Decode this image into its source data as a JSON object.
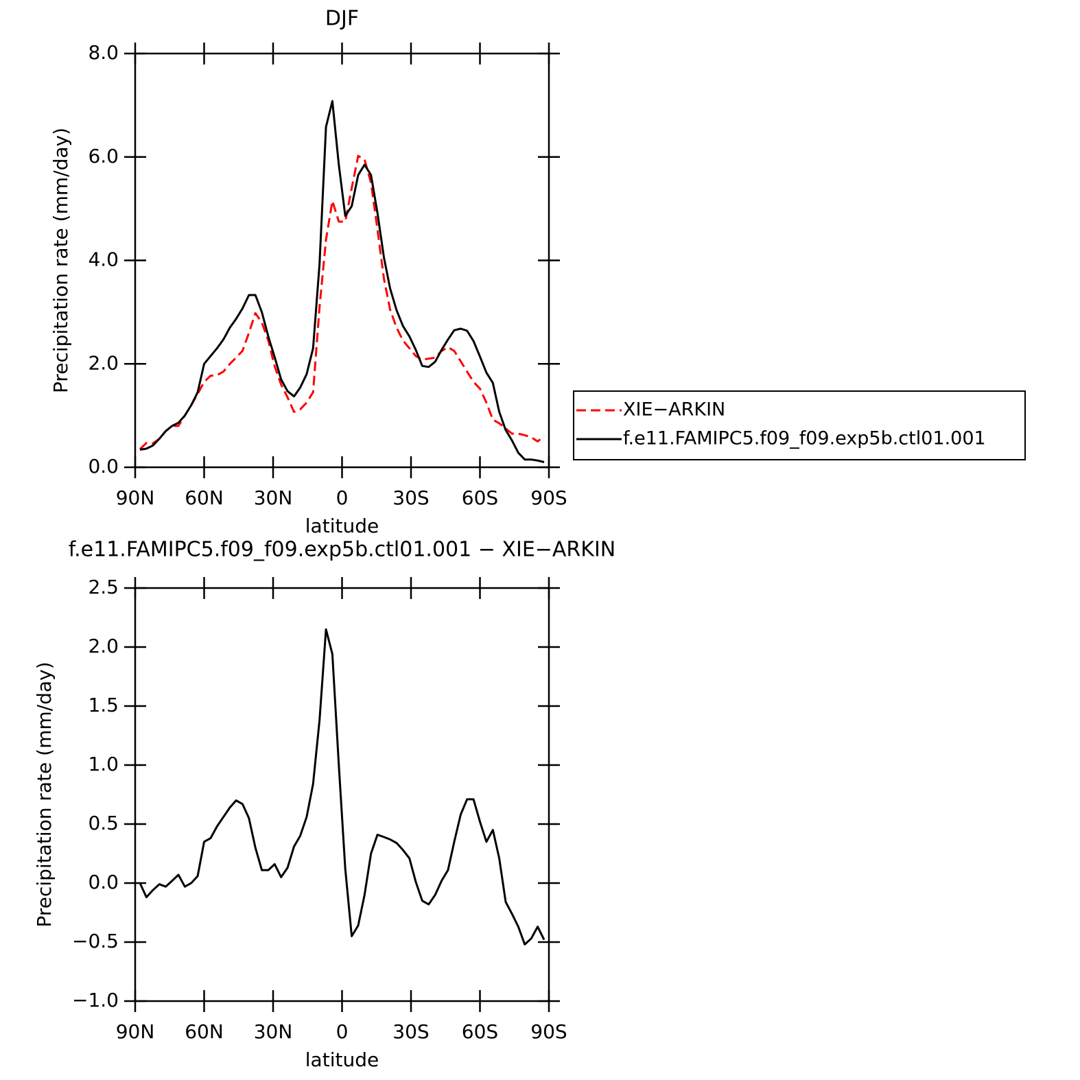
{
  "chart_data": [
    {
      "type": "line",
      "title": "DJF",
      "xlabel": "latitude",
      "ylabel": "Precipitation rate (mm/day)",
      "x": [
        87.9,
        85.1,
        82.3,
        79.5,
        76.7,
        73.9,
        71.2,
        68.4,
        65.6,
        62.8,
        60.0,
        57.2,
        54.4,
        51.6,
        48.8,
        46.1,
        43.3,
        40.5,
        37.7,
        34.9,
        32.1,
        29.3,
        26.5,
        23.7,
        20.9,
        18.2,
        15.4,
        12.6,
        9.8,
        7.0,
        4.2,
        1.4,
        -1.4,
        -4.2,
        -7.0,
        -9.8,
        -12.6,
        -15.4,
        -18.2,
        -20.9,
        -23.7,
        -26.5,
        -29.3,
        -32.1,
        -34.9,
        -37.7,
        -40.5,
        -43.3,
        -46.1,
        -48.8,
        -51.6,
        -54.4,
        -57.2,
        -60.0,
        -62.8,
        -65.6,
        -68.4,
        -71.2,
        -73.9,
        -76.7,
        -79.5,
        -82.3,
        -85.1,
        -87.9
      ],
      "series": [
        {
          "name": "XIE−ARKIN",
          "color": "#ff0000",
          "line_style": "dashed",
          "values": [
            0.35,
            0.47,
            0.46,
            0.55,
            0.7,
            0.8,
            0.8,
            1.0,
            1.2,
            1.42,
            1.65,
            1.77,
            1.78,
            1.85,
            2.0,
            2.12,
            2.25,
            2.6,
            2.98,
            2.8,
            2.45,
            1.95,
            1.6,
            1.35,
            1.07,
            1.12,
            1.25,
            1.45,
            3.1,
            4.4,
            5.15,
            4.75,
            4.75,
            5.4,
            6.02,
            5.95,
            5.5,
            4.6,
            3.65,
            3.05,
            2.7,
            2.45,
            2.3,
            2.15,
            2.08,
            2.1,
            2.12,
            2.25,
            2.32,
            2.25,
            2.05,
            1.85,
            1.65,
            1.52,
            1.25,
            0.92,
            0.85,
            0.75,
            0.65,
            0.65,
            0.62,
            0.58,
            0.5,
            0.6
          ]
        },
        {
          "name": "f.e11.FAMIPC5.f09_f09.exp5b.ctl01.001",
          "color": "#000000",
          "line_style": "solid",
          "values": [
            0.34,
            0.36,
            0.42,
            0.55,
            0.7,
            0.8,
            0.86,
            1.0,
            1.2,
            1.45,
            2.0,
            2.15,
            2.3,
            2.47,
            2.7,
            2.87,
            3.07,
            3.33,
            3.33,
            3.0,
            2.53,
            2.13,
            1.7,
            1.47,
            1.37,
            1.54,
            1.8,
            2.3,
            3.93,
            6.58,
            7.08,
            5.85,
            4.86,
            5.05,
            5.65,
            5.85,
            5.65,
            4.92,
            4.06,
            3.46,
            3.04,
            2.73,
            2.53,
            2.27,
            1.96,
            1.94,
            2.04,
            2.27,
            2.47,
            2.65,
            2.68,
            2.64,
            2.44,
            2.14,
            1.83,
            1.63,
            1.07,
            0.72,
            0.52,
            0.28,
            0.15,
            0.15,
            0.13,
            0.1
          ]
        }
      ],
      "xlim": [
        90,
        -90
      ],
      "xticks": [
        {
          "value": 90,
          "label": "90N"
        },
        {
          "value": 60,
          "label": "60N"
        },
        {
          "value": 30,
          "label": "30N"
        },
        0,
        {
          "value": -30,
          "label": "30S"
        },
        {
          "value": -60,
          "label": "60S"
        },
        {
          "value": -90,
          "label": "90S"
        }
      ],
      "ylim": [
        0,
        8
      ],
      "yticks": [
        {
          "value": 0,
          "label": "0.0"
        },
        {
          "value": 2,
          "label": "2.0"
        },
        {
          "value": 4,
          "label": "4.0"
        },
        {
          "value": 6,
          "label": "6.0"
        },
        {
          "value": 8,
          "label": "8.0"
        }
      ],
      "legend": "right"
    },
    {
      "type": "line",
      "title": "f.e11.FAMIPC5.f09_f09.exp5b.ctl01.001 − XIE−ARKIN",
      "xlabel": "latitude",
      "ylabel": "Precipitation rate (mm/day)",
      "x": [
        87.9,
        85.1,
        82.3,
        79.5,
        76.7,
        73.9,
        71.2,
        68.4,
        65.6,
        62.8,
        60.0,
        57.2,
        54.4,
        51.6,
        48.8,
        46.1,
        43.3,
        40.5,
        37.7,
        34.9,
        32.1,
        29.3,
        26.5,
        23.7,
        20.9,
        18.2,
        15.4,
        12.6,
        9.8,
        7.0,
        4.2,
        1.4,
        -1.4,
        -4.2,
        -7.0,
        -9.8,
        -12.6,
        -15.4,
        -18.2,
        -20.9,
        -23.7,
        -26.5,
        -29.3,
        -32.1,
        -34.9,
        -37.7,
        -40.5,
        -43.3,
        -46.1,
        -48.8,
        -51.6,
        -54.4,
        -57.2,
        -60.0,
        -62.8,
        -65.6,
        -68.4,
        -71.2,
        -73.9,
        -76.7,
        -79.5,
        -82.3,
        -85.1,
        -87.9
      ],
      "values": [
        0.0,
        -0.12,
        -0.06,
        -0.01,
        -0.03,
        0.02,
        0.07,
        -0.03,
        0.0,
        0.06,
        0.35,
        0.38,
        0.48,
        0.56,
        0.64,
        0.7,
        0.67,
        0.55,
        0.3,
        0.11,
        0.11,
        0.16,
        0.05,
        0.13,
        0.31,
        0.4,
        0.56,
        0.84,
        1.38,
        2.15,
        1.94,
        1.0,
        0.12,
        -0.45,
        -0.36,
        -0.1,
        0.25,
        0.41,
        0.39,
        0.37,
        0.34,
        0.28,
        0.21,
        0.01,
        -0.15,
        -0.18,
        -0.1,
        0.02,
        0.11,
        0.35,
        0.58,
        0.71,
        0.71,
        0.52,
        0.35,
        0.45,
        0.21,
        -0.16,
        -0.26,
        -0.37,
        -0.52,
        -0.47,
        -0.37,
        -0.48
      ],
      "color": "#000000",
      "line_style": "solid",
      "xlim": [
        90,
        -90
      ],
      "xticks": [
        {
          "value": 90,
          "label": "90N"
        },
        {
          "value": 60,
          "label": "60N"
        },
        {
          "value": 30,
          "label": "30N"
        },
        0,
        {
          "value": -30,
          "label": "30S"
        },
        {
          "value": -60,
          "label": "60S"
        },
        {
          "value": -90,
          "label": "90S"
        }
      ],
      "ylim": [
        -1,
        2.5
      ],
      "yticks": [
        {
          "value": -1,
          "label": "−1.0"
        },
        {
          "value": -0.5,
          "label": "−0.5"
        },
        {
          "value": 0,
          "label": "0.0"
        },
        0.5,
        {
          "value": 1,
          "label": "1.0"
        },
        1.5,
        {
          "value": 2,
          "label": "2.0"
        },
        2.5
      ]
    }
  ]
}
